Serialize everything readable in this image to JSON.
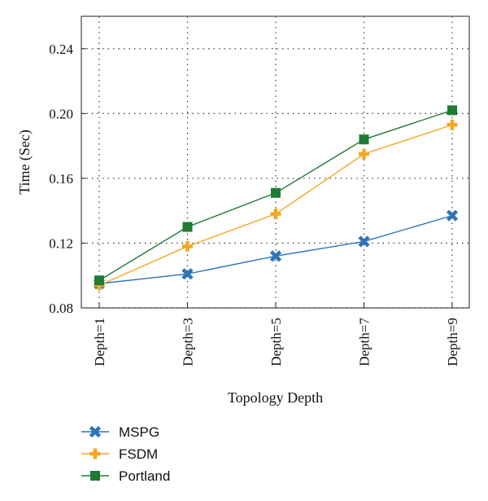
{
  "chart_data": {
    "type": "line",
    "title": "",
    "xlabel": "Topology Depth",
    "ylabel": "Time (Sec)",
    "categories": [
      "Depth=1",
      "Depth=3",
      "Depth=5",
      "Depth=7",
      "Depth=9"
    ],
    "ylim": [
      0.08,
      0.26
    ],
    "yticks": [
      "0.08",
      "0.12",
      "0.16",
      "0.20",
      "0.24"
    ],
    "grid": true,
    "legend_position": "bottom-left",
    "series": [
      {
        "name": "MSPG",
        "color": "#2e75b6",
        "marker": "x-icon",
        "values": [
          0.095,
          0.101,
          0.112,
          0.121,
          0.137
        ]
      },
      {
        "name": "FSDM",
        "color": "#f5a623",
        "marker": "plus-icon",
        "values": [
          0.094,
          0.118,
          0.138,
          0.175,
          0.193
        ]
      },
      {
        "name": "Portland",
        "color": "#1e7b34",
        "marker": "square-icon",
        "values": [
          0.097,
          0.13,
          0.151,
          0.184,
          0.202
        ]
      }
    ]
  }
}
